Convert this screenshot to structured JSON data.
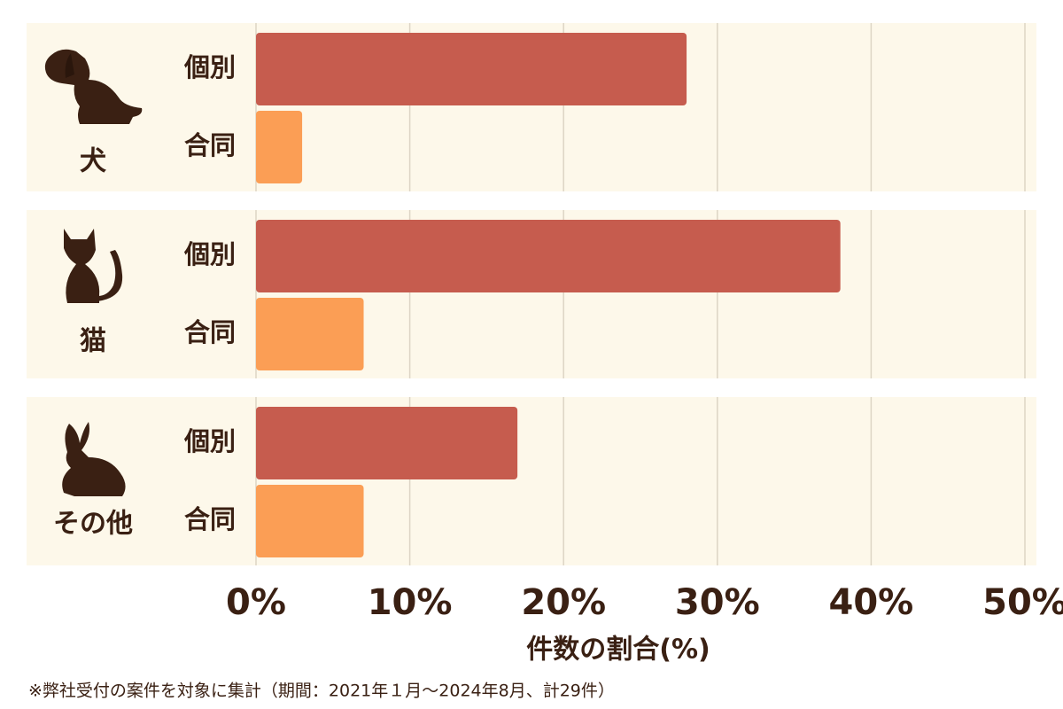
{
  "chart_data": {
    "type": "grouped-hbar",
    "categories": [
      "犬",
      "猫",
      "その他"
    ],
    "series": [
      {
        "name": "個別",
        "color": "#c65c4e",
        "values": [
          28,
          38,
          17
        ]
      },
      {
        "name": "合同",
        "color": "#fb9e55",
        "values": [
          3,
          7,
          7
        ]
      }
    ],
    "xlim": [
      0,
      50
    ],
    "xticks": [
      {
        "value": 0,
        "label": "0%"
      },
      {
        "value": 10,
        "label": "10%"
      },
      {
        "value": 20,
        "label": "20%"
      },
      {
        "value": 30,
        "label": "30%"
      },
      {
        "value": 40,
        "label": "40%"
      },
      {
        "value": 50,
        "label": "50%"
      }
    ],
    "xlabel": "件数の割合(%)",
    "grid": true,
    "note": "※弊社受付の案件を対象に集計（期間：2021年１月〜2024年8月、計29件）"
  }
}
